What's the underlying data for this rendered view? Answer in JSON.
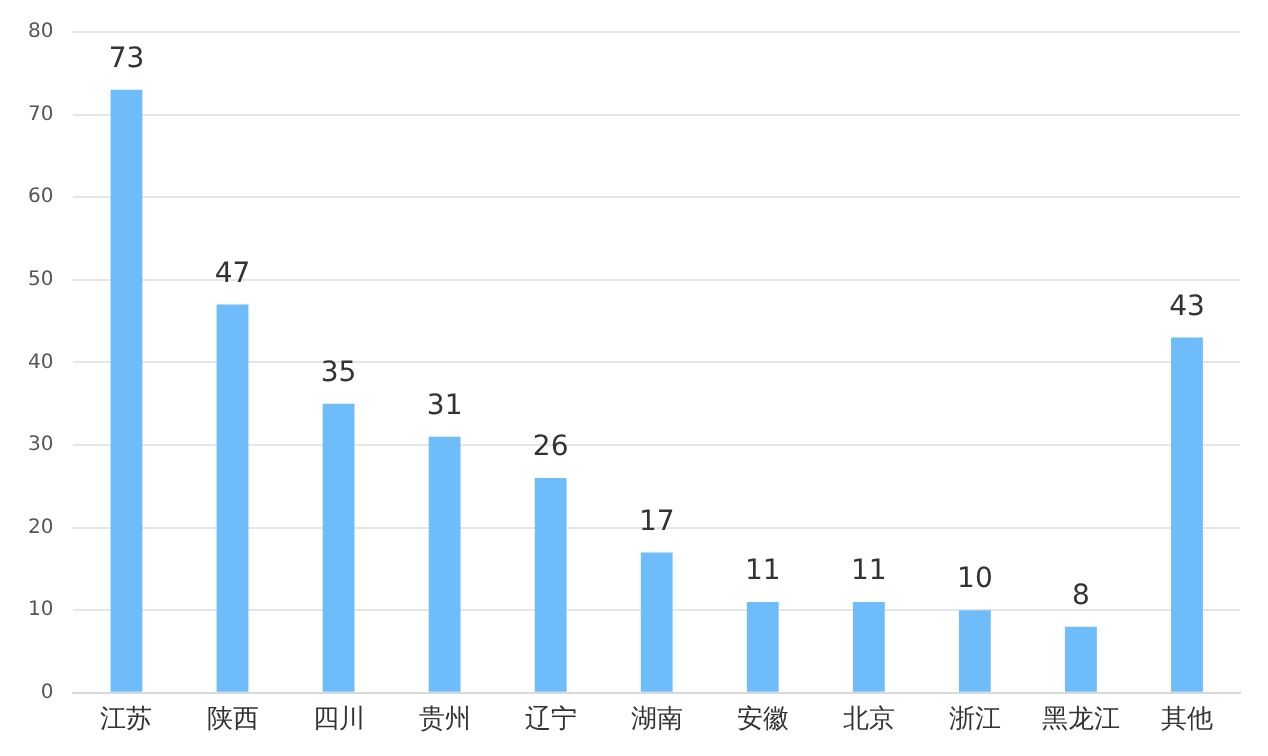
{
  "chart_data": {
    "type": "bar",
    "categories": [
      "江苏",
      "陕西",
      "四川",
      "贵州",
      "辽宁",
      "湖南",
      "安徽",
      "北京",
      "浙江",
      "黑龙江",
      "其他"
    ],
    "values": [
      73,
      47,
      35,
      31,
      26,
      17,
      11,
      11,
      10,
      8,
      43
    ],
    "color": "#6ebcfa",
    "ylim": [
      0,
      80
    ],
    "yticks": [
      0,
      10,
      20,
      30,
      40,
      50,
      60,
      70,
      80
    ],
    "grid": "y",
    "data_labels": true
  }
}
